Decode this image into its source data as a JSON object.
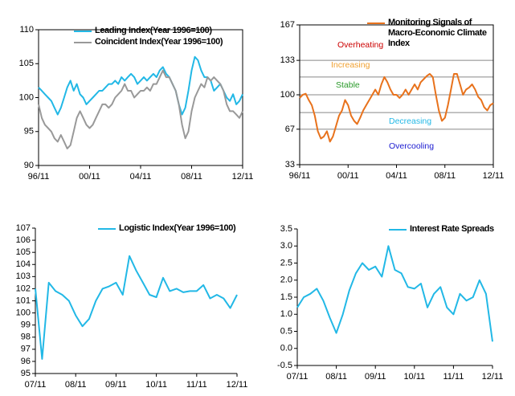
{
  "chart_data": [
    {
      "type": "line",
      "categories": [
        "96/11",
        null,
        null,
        null,
        null,
        null,
        null,
        null,
        null,
        null,
        null,
        null,
        null,
        null,
        null,
        null,
        "00/11",
        null,
        null,
        null,
        null,
        null,
        null,
        null,
        null,
        null,
        null,
        null,
        null,
        null,
        null,
        null,
        "04/11",
        null,
        null,
        null,
        null,
        null,
        null,
        null,
        null,
        null,
        null,
        null,
        null,
        null,
        null,
        null,
        "08/11",
        null,
        null,
        null,
        null,
        null,
        null,
        null,
        null,
        null,
        null,
        null,
        null,
        null,
        null,
        null,
        "12/11"
      ],
      "series": [
        {
          "name": "Leading Index(Year 1996=100)",
          "color": "#22b8e6",
          "values": [
            101.5,
            101,
            100.5,
            100,
            99.5,
            98.5,
            97.5,
            98.5,
            100,
            101.5,
            102.5,
            101,
            102,
            100.5,
            100,
            99,
            99.5,
            100,
            100.5,
            101,
            101,
            101.5,
            102,
            102,
            102.5,
            102,
            103,
            102.5,
            103,
            103.5,
            103,
            102,
            102.5,
            103,
            102.5,
            103,
            103.5,
            103,
            104,
            104.5,
            103.5,
            103,
            102,
            101,
            99,
            97.5,
            98.5,
            101,
            104,
            106,
            105.5,
            104,
            103,
            103,
            102.5,
            101,
            101.5,
            102,
            101,
            100,
            99.5,
            100.5,
            99,
            99.5,
            100.5
          ]
        },
        {
          "name": "Coincident Index(Year 1996=100)",
          "color": "#999999",
          "values": [
            99,
            97,
            96,
            95.5,
            95,
            94,
            93.5,
            94.5,
            93.5,
            92.5,
            93,
            95,
            97,
            98,
            97,
            96,
            95.5,
            96,
            97,
            98,
            99,
            99,
            98.5,
            99,
            100,
            100.5,
            101,
            102,
            101,
            101,
            100,
            100.5,
            101,
            101,
            101.5,
            101,
            102,
            102,
            103,
            104,
            103,
            103,
            102,
            101,
            99,
            96,
            94,
            95,
            98,
            100,
            101,
            102,
            101.5,
            103,
            102.5,
            103,
            102.5,
            102,
            101,
            99,
            98,
            98,
            97.5,
            97,
            98
          ]
        }
      ],
      "ylim": [
        90,
        110
      ],
      "yticks": [
        90,
        95,
        100,
        105,
        110
      ]
    },
    {
      "type": "line",
      "categories": [
        "96/11",
        null,
        null,
        null,
        null,
        null,
        null,
        null,
        null,
        null,
        null,
        null,
        null,
        null,
        null,
        null,
        "00/11",
        null,
        null,
        null,
        null,
        null,
        null,
        null,
        null,
        null,
        null,
        null,
        null,
        null,
        null,
        null,
        "04/11",
        null,
        null,
        null,
        null,
        null,
        null,
        null,
        null,
        null,
        null,
        null,
        null,
        null,
        null,
        null,
        "08/11",
        null,
        null,
        null,
        null,
        null,
        null,
        null,
        null,
        null,
        null,
        null,
        null,
        null,
        null,
        null,
        "12/11"
      ],
      "series": [
        {
          "name": "Monitoring Signals of Macro-Economic Climate Index",
          "color": "#e8721c",
          "values": [
            97,
            100,
            101,
            95,
            90,
            80,
            65,
            58,
            60,
            65,
            55,
            60,
            70,
            80,
            85,
            95,
            90,
            80,
            75,
            72,
            78,
            85,
            90,
            95,
            100,
            105,
            100,
            110,
            117,
            112,
            105,
            100,
            100,
            97,
            100,
            105,
            100,
            105,
            110,
            105,
            112,
            115,
            118,
            120,
            117,
            100,
            85,
            75,
            78,
            90,
            105,
            120,
            120,
            110,
            100,
            105,
            107,
            110,
            105,
            98,
            95,
            88,
            85,
            90,
            92
          ]
        }
      ],
      "ylim": [
        33,
        167
      ],
      "yticks": [
        33,
        67,
        100,
        133,
        167
      ],
      "reference_lines": [
        133,
        117,
        100,
        83,
        67
      ],
      "annotations": [
        {
          "text": "Overheating",
          "color": "#cc0000"
        },
        {
          "text": "Increasing",
          "color": "#f0a030"
        },
        {
          "text": "Stable",
          "color": "#2a9a2a"
        },
        {
          "text": "Decreasing",
          "color": "#22b8e6"
        },
        {
          "text": "Overcooling",
          "color": "#1a1ad0"
        }
      ]
    },
    {
      "type": "line",
      "categories": [
        "07/11",
        null,
        null,
        null,
        null,
        null,
        "08/11",
        null,
        null,
        null,
        null,
        null,
        "09/11",
        null,
        null,
        null,
        null,
        null,
        "10/11",
        null,
        null,
        null,
        null,
        null,
        "11/11",
        null,
        null,
        null,
        null,
        null,
        "12/11"
      ],
      "series": [
        {
          "name": "Logistic Index(Year 1996=100)",
          "color": "#22b8e6",
          "values": [
            102,
            96.2,
            102.5,
            101.8,
            101.5,
            101,
            99.8,
            98.9,
            99.5,
            101,
            102,
            102.2,
            102.5,
            101.5,
            104.7,
            103.5,
            102.5,
            101.5,
            101.3,
            102.9,
            101.8,
            102,
            101.7,
            101.8,
            101.8,
            102.3,
            101.2,
            101.5,
            101.2,
            100.4,
            101.5
          ]
        }
      ],
      "ylim": [
        95,
        107
      ],
      "yticks": [
        95,
        96,
        97,
        98,
        99,
        100,
        101,
        102,
        103,
        104,
        105,
        106,
        107
      ]
    },
    {
      "type": "line",
      "categories": [
        "07/11",
        null,
        null,
        null,
        null,
        null,
        "08/11",
        null,
        null,
        null,
        null,
        null,
        "09/11",
        null,
        null,
        null,
        null,
        null,
        "10/11",
        null,
        null,
        null,
        null,
        null,
        "11/11",
        null,
        null,
        null,
        null,
        null,
        "12/11"
      ],
      "series": [
        {
          "name": "Interest Rate Spreads",
          "color": "#22b8e6",
          "values": [
            1.2,
            1.5,
            1.6,
            1.75,
            1.4,
            0.9,
            0.45,
            1.0,
            1.7,
            2.2,
            2.5,
            2.3,
            2.4,
            2.1,
            3.0,
            2.3,
            2.2,
            1.8,
            1.75,
            1.9,
            1.2,
            1.6,
            1.8,
            1.2,
            1.0,
            1.6,
            1.4,
            1.5,
            2.0,
            1.6,
            0.2
          ]
        }
      ],
      "ylim": [
        -0.5,
        3.5
      ],
      "yticks": [
        -0.5,
        {
          "value": 0,
          "label": "0.0"
        },
        0.5,
        {
          "value": 1,
          "label": "1.0"
        },
        1.5,
        {
          "value": 2,
          "label": "2.0"
        },
        2.5,
        {
          "value": 3,
          "label": "3.0"
        },
        3.5
      ]
    }
  ]
}
